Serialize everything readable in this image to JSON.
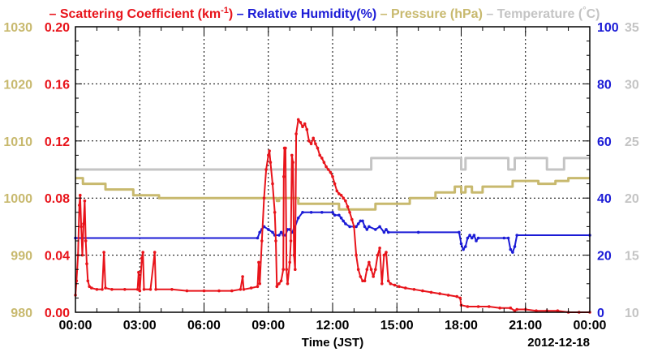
{
  "chart_data": {
    "type": "line",
    "legend": {
      "placement": "top",
      "items": [
        {
          "dash": "–",
          "label": "Scattering Coefficient (km",
          "sup": "-1",
          "tail": ")",
          "color": "#e8141b"
        },
        {
          "dash": "–",
          "label": "Relative Humidity(%)",
          "color": "#1b1bd6"
        },
        {
          "dash": "–",
          "label": "Pressure (hPa)",
          "color": "#c8b96e"
        },
        {
          "dash": "–",
          "label": "Temperature (",
          "sup": "°",
          "tail": "C)",
          "color": "#c4c4c4"
        }
      ]
    },
    "xlabel": "Time (JST)",
    "date_label": "2012-12-18",
    "x_range_hours": [
      0,
      24
    ],
    "x_ticks": [
      {
        "h": 0,
        "label": "00:00"
      },
      {
        "h": 3,
        "label": "03:00"
      },
      {
        "h": 6,
        "label": "06:00"
      },
      {
        "h": 9,
        "label": "09:00"
      },
      {
        "h": 12,
        "label": "12:00"
      },
      {
        "h": 15,
        "label": "15:00"
      },
      {
        "h": 18,
        "label": "18:00"
      },
      {
        "h": 21,
        "label": "21:00"
      },
      {
        "h": 24,
        "label": "00:00"
      }
    ],
    "grid": true,
    "axes": {
      "pressure": {
        "side": "left-outer",
        "color": "#c8b96e",
        "range": [
          980,
          1030
        ],
        "ticks": [
          "980",
          "990",
          "1000",
          "1010",
          "1020",
          "1030"
        ]
      },
      "scattering": {
        "side": "left-inner",
        "color": "#e8141b",
        "range": [
          0,
          0.2
        ],
        "ticks": [
          "0.00",
          "0.04",
          "0.08",
          "0.12",
          "0.16",
          "0.20"
        ]
      },
      "humidity": {
        "side": "right-inner",
        "color": "#1b1bd6",
        "range": [
          0,
          100
        ],
        "ticks": [
          "0",
          "20",
          "40",
          "60",
          "80",
          "100"
        ]
      },
      "temperature": {
        "side": "right-outer",
        "color": "#c4c4c4",
        "range": [
          10,
          35
        ],
        "ticks": [
          "10",
          "15",
          "20",
          "25",
          "30",
          "35"
        ]
      }
    },
    "series": [
      {
        "name": "Scattering Coefficient",
        "axis": "scattering",
        "color": "#e8141b",
        "markers": true,
        "points": [
          [
            0.0,
            0.012
          ],
          [
            0.05,
            0.022
          ],
          [
            0.12,
            0.04
          ],
          [
            0.18,
            0.075
          ],
          [
            0.22,
            0.082
          ],
          [
            0.27,
            0.06
          ],
          [
            0.32,
            0.04
          ],
          [
            0.38,
            0.062
          ],
          [
            0.43,
            0.078
          ],
          [
            0.48,
            0.05
          ],
          [
            0.53,
            0.034
          ],
          [
            0.58,
            0.022
          ],
          [
            0.65,
            0.018
          ],
          [
            0.75,
            0.017
          ],
          [
            1.0,
            0.016
          ],
          [
            1.25,
            0.016
          ],
          [
            1.33,
            0.042
          ],
          [
            1.4,
            0.017
          ],
          [
            1.7,
            0.016
          ],
          [
            2.3,
            0.016
          ],
          [
            2.9,
            0.016
          ],
          [
            2.95,
            0.028
          ],
          [
            3.0,
            0.015
          ],
          [
            3.1,
            0.038
          ],
          [
            3.15,
            0.042
          ],
          [
            3.2,
            0.016
          ],
          [
            3.5,
            0.016
          ],
          [
            3.7,
            0.042
          ],
          [
            3.75,
            0.016
          ],
          [
            4.5,
            0.016
          ],
          [
            5.2,
            0.015
          ],
          [
            6.0,
            0.015
          ],
          [
            6.7,
            0.015
          ],
          [
            7.3,
            0.015
          ],
          [
            7.7,
            0.016
          ],
          [
            7.8,
            0.025
          ],
          [
            7.85,
            0.016
          ],
          [
            8.2,
            0.017
          ],
          [
            8.5,
            0.018
          ],
          [
            8.55,
            0.035
          ],
          [
            8.6,
            0.02
          ],
          [
            8.7,
            0.05
          ],
          [
            8.8,
            0.08
          ],
          [
            8.9,
            0.1
          ],
          [
            9.0,
            0.11
          ],
          [
            9.05,
            0.113
          ],
          [
            9.1,
            0.105
          ],
          [
            9.2,
            0.09
          ],
          [
            9.3,
            0.07
          ],
          [
            9.35,
            0.05
          ],
          [
            9.4,
            0.018
          ],
          [
            9.5,
            0.02
          ],
          [
            9.6,
            0.022
          ],
          [
            9.7,
            0.03
          ],
          [
            9.72,
            0.095
          ],
          [
            9.75,
            0.115
          ],
          [
            9.8,
            0.115
          ],
          [
            9.85,
            0.03
          ],
          [
            9.9,
            0.02
          ],
          [
            10.0,
            0.035
          ],
          [
            10.05,
            0.05
          ],
          [
            10.1,
            0.11
          ],
          [
            10.15,
            0.105
          ],
          [
            10.2,
            0.04
          ],
          [
            10.25,
            0.03
          ],
          [
            10.3,
            0.125
          ],
          [
            10.4,
            0.135
          ],
          [
            10.5,
            0.133
          ],
          [
            10.6,
            0.13
          ],
          [
            10.7,
            0.132
          ],
          [
            10.8,
            0.128
          ],
          [
            10.9,
            0.12
          ],
          [
            11.0,
            0.118
          ],
          [
            11.1,
            0.122
          ],
          [
            11.2,
            0.118
          ],
          [
            11.3,
            0.115
          ],
          [
            11.4,
            0.11
          ],
          [
            11.5,
            0.108
          ],
          [
            11.6,
            0.105
          ],
          [
            11.7,
            0.102
          ],
          [
            11.8,
            0.1
          ],
          [
            11.9,
            0.098
          ],
          [
            12.0,
            0.095
          ],
          [
            12.1,
            0.09
          ],
          [
            12.2,
            0.085
          ],
          [
            12.3,
            0.083
          ],
          [
            12.4,
            0.082
          ],
          [
            12.5,
            0.08
          ],
          [
            12.6,
            0.078
          ],
          [
            12.7,
            0.074
          ],
          [
            12.8,
            0.07
          ],
          [
            12.9,
            0.065
          ],
          [
            13.0,
            0.06
          ],
          [
            13.1,
            0.04
          ],
          [
            13.2,
            0.03
          ],
          [
            13.3,
            0.025
          ],
          [
            13.4,
            0.022
          ],
          [
            13.5,
            0.022
          ],
          [
            13.6,
            0.03
          ],
          [
            13.7,
            0.035
          ],
          [
            13.8,
            0.03
          ],
          [
            13.9,
            0.025
          ],
          [
            14.0,
            0.03
          ],
          [
            14.1,
            0.04
          ],
          [
            14.2,
            0.045
          ],
          [
            14.3,
            0.02
          ],
          [
            14.4,
            0.04
          ],
          [
            14.5,
            0.042
          ],
          [
            14.6,
            0.022
          ],
          [
            14.7,
            0.02
          ],
          [
            14.9,
            0.019
          ],
          [
            15.1,
            0.018
          ],
          [
            15.4,
            0.017
          ],
          [
            15.8,
            0.016
          ],
          [
            16.2,
            0.015
          ],
          [
            16.6,
            0.014
          ],
          [
            17.0,
            0.013
          ],
          [
            17.4,
            0.012
          ],
          [
            17.8,
            0.011
          ],
          [
            17.95,
            0.01
          ],
          [
            18.0,
            0.005
          ],
          [
            18.3,
            0.004
          ],
          [
            18.8,
            0.004
          ],
          [
            19.3,
            0.004
          ],
          [
            19.8,
            0.003
          ],
          [
            20.3,
            0.003
          ],
          [
            20.5,
            0.001
          ],
          [
            20.6,
            0.002
          ],
          [
            21.0,
            0.002
          ],
          [
            21.5,
            0.001
          ],
          [
            22.0,
            0.001
          ],
          [
            22.5,
            0.001
          ],
          [
            23.0,
            0.0
          ],
          [
            23.5,
            0.0
          ],
          [
            24.0,
            0.0
          ]
        ]
      },
      {
        "name": "Relative Humidity",
        "axis": "humidity",
        "color": "#1b1bd6",
        "markers": true,
        "points": [
          [
            0.0,
            26
          ],
          [
            8.5,
            26
          ],
          [
            8.6,
            28
          ],
          [
            8.7,
            29
          ],
          [
            8.8,
            30
          ],
          [
            9.0,
            29
          ],
          [
            9.2,
            28
          ],
          [
            9.3,
            27
          ],
          [
            9.5,
            27
          ],
          [
            9.6,
            28
          ],
          [
            9.7,
            27
          ],
          [
            9.8,
            27
          ],
          [
            9.9,
            29
          ],
          [
            10.0,
            29
          ],
          [
            10.1,
            28
          ],
          [
            10.2,
            29
          ],
          [
            10.4,
            33
          ],
          [
            10.6,
            35
          ],
          [
            11.0,
            35
          ],
          [
            11.5,
            35
          ],
          [
            12.0,
            35
          ],
          [
            12.1,
            34
          ],
          [
            12.3,
            34
          ],
          [
            12.4,
            33
          ],
          [
            12.5,
            32
          ],
          [
            12.6,
            31
          ],
          [
            12.8,
            30
          ],
          [
            13.0,
            30
          ],
          [
            13.1,
            30
          ],
          [
            13.2,
            31
          ],
          [
            13.3,
            32
          ],
          [
            13.4,
            32
          ],
          [
            13.5,
            30
          ],
          [
            13.6,
            29
          ],
          [
            13.7,
            30
          ],
          [
            14.0,
            29
          ],
          [
            14.2,
            30
          ],
          [
            14.4,
            28
          ],
          [
            14.5,
            29
          ],
          [
            14.6,
            28
          ],
          [
            16.0,
            28
          ],
          [
            17.9,
            28
          ],
          [
            18.0,
            24
          ],
          [
            18.1,
            22
          ],
          [
            18.2,
            23
          ],
          [
            18.3,
            26
          ],
          [
            18.4,
            27
          ],
          [
            18.5,
            26
          ],
          [
            18.6,
            27
          ],
          [
            18.7,
            25
          ],
          [
            18.8,
            26
          ],
          [
            20.0,
            26
          ],
          [
            20.2,
            26
          ],
          [
            20.3,
            22
          ],
          [
            20.4,
            21
          ],
          [
            20.5,
            23
          ],
          [
            20.6,
            27
          ],
          [
            24.0,
            27
          ]
        ]
      },
      {
        "name": "Pressure",
        "axis": "pressure",
        "color": "#c8b96e",
        "markers": false,
        "points": [
          [
            0.0,
            1003.5
          ],
          [
            0.35,
            1003.5
          ],
          [
            0.35,
            1002.5
          ],
          [
            1.4,
            1002.5
          ],
          [
            1.4,
            1001.5
          ],
          [
            2.7,
            1001.5
          ],
          [
            2.7,
            1000.5
          ],
          [
            3.9,
            1000.5
          ],
          [
            3.9,
            1000.0
          ],
          [
            9.4,
            1000.0
          ],
          [
            9.4,
            999.5
          ],
          [
            9.5,
            999.5
          ],
          [
            9.5,
            1000.0
          ],
          [
            10.4,
            1000.0
          ],
          [
            10.4,
            999.0
          ],
          [
            12.3,
            999.0
          ],
          [
            12.3,
            998.0
          ],
          [
            14.0,
            998.0
          ],
          [
            14.0,
            999.0
          ],
          [
            15.6,
            999.0
          ],
          [
            15.6,
            1000.0
          ],
          [
            16.8,
            1000.0
          ],
          [
            16.8,
            1001.0
          ],
          [
            17.7,
            1001.0
          ],
          [
            17.7,
            1002.0
          ],
          [
            18.0,
            1002.0
          ],
          [
            18.0,
            1001.0
          ],
          [
            18.2,
            1001.0
          ],
          [
            18.2,
            1002.0
          ],
          [
            18.5,
            1002.0
          ],
          [
            18.5,
            1001.0
          ],
          [
            19.0,
            1001.0
          ],
          [
            19.0,
            1002.0
          ],
          [
            20.4,
            1002.0
          ],
          [
            20.4,
            1003.0
          ],
          [
            21.6,
            1003.0
          ],
          [
            21.6,
            1002.5
          ],
          [
            22.4,
            1002.5
          ],
          [
            22.4,
            1003.0
          ],
          [
            23.0,
            1003.0
          ],
          [
            23.0,
            1003.5
          ],
          [
            24.0,
            1003.5
          ]
        ]
      },
      {
        "name": "Temperature",
        "axis": "temperature",
        "color": "#c4c4c4",
        "markers": false,
        "points": [
          [
            0.0,
            22.5
          ],
          [
            13.8,
            22.5
          ],
          [
            13.8,
            23.5
          ],
          [
            18.0,
            23.5
          ],
          [
            18.0,
            22.5
          ],
          [
            18.2,
            22.5
          ],
          [
            18.2,
            23.5
          ],
          [
            20.2,
            23.5
          ],
          [
            20.2,
            22.5
          ],
          [
            20.5,
            22.5
          ],
          [
            20.5,
            23.5
          ],
          [
            22.0,
            23.5
          ],
          [
            22.0,
            22.5
          ],
          [
            22.8,
            22.5
          ],
          [
            22.8,
            23.5
          ],
          [
            24.0,
            23.5
          ]
        ]
      }
    ]
  }
}
